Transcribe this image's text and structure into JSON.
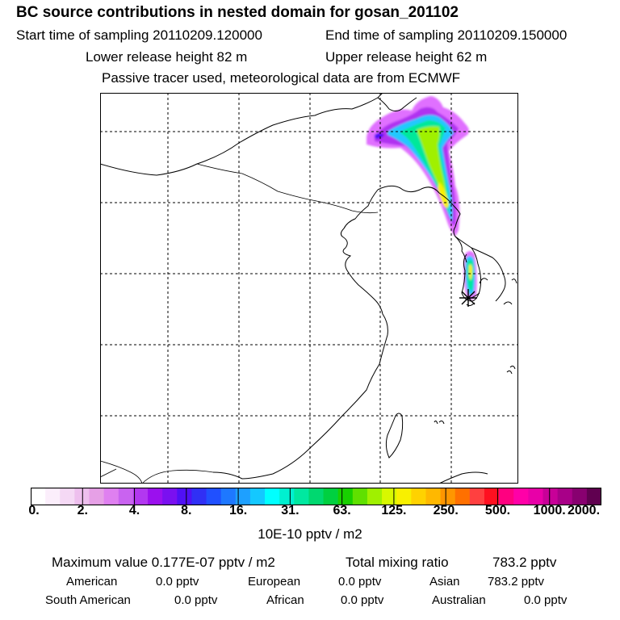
{
  "header": {
    "title": "BC  source contributions in nested domain for gosan_201102",
    "start_label": "Start time of sampling 20110209.120000",
    "end_label": "End time of sampling 20110209.150000",
    "lower_height": "Lower release height   82 m",
    "upper_height": "Upper release height   62 m",
    "info": "Passive tracer used, meteorological data are from ECMWF"
  },
  "colorbar": {
    "colors": [
      "#ffffff",
      "#fbeefb",
      "#f5d9f5",
      "#eebfee",
      "#e6a0e6",
      "#df80f0",
      "#c963f0",
      "#b238f0",
      "#9b10ee",
      "#7a10f0",
      "#5010f5",
      "#3030f5",
      "#2050ff",
      "#1e78ff",
      "#1ea0ff",
      "#14c8ff",
      "#00ffff",
      "#00f0d0",
      "#00e8a0",
      "#00d870",
      "#00d040",
      "#18d000",
      "#60e000",
      "#a0f000",
      "#d8f800",
      "#f8f000",
      "#ffd200",
      "#ffb800",
      "#ff9600",
      "#ff7000",
      "#ff4040",
      "#ff1020",
      "#ff0080",
      "#ff00a8",
      "#e800a8",
      "#c80098",
      "#a80088",
      "#880070",
      "#600050"
    ],
    "ticks": [
      "0.",
      "2.",
      "4.",
      "8.",
      "16.",
      "31.",
      "63.",
      "125.",
      "250.",
      "500.",
      "1000.",
      "2000."
    ],
    "unit_label": "10E-10 pptv / m2"
  },
  "summary": {
    "max_label": "Maximum value  0.177E-07 pptv / m2",
    "total_label": "Total mixing ratio",
    "total_value": "783.2 pptv",
    "regions": [
      {
        "name": "American",
        "value": "0.0 pptv"
      },
      {
        "name": "European",
        "value": "0.0 pptv"
      },
      {
        "name": "Asian",
        "value": "783.2 pptv"
      },
      {
        "name": "South American",
        "value": "0.0 pptv"
      },
      {
        "name": "African",
        "value": "0.0 pptv"
      },
      {
        "name": "Australian",
        "value": "0.0 pptv"
      }
    ]
  }
}
